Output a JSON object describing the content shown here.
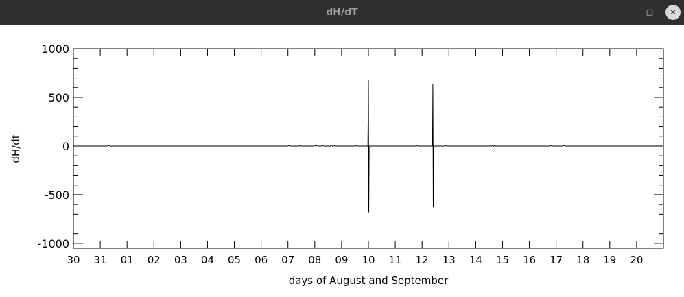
{
  "window": {
    "title": "dH/dT",
    "minimize_icon": "minimize-icon",
    "maximize_icon": "maximize-icon",
    "close_icon": "close-icon"
  },
  "chart_data": {
    "type": "line",
    "title": "",
    "xlabel": "days of August and September",
    "ylabel": "dH/dt",
    "xlim": [
      "2024-08-30",
      "2024-09-21"
    ],
    "ylim": [
      -1050,
      1000
    ],
    "x_ticks": [
      {
        "date": "2024-08-30",
        "label": "30"
      },
      {
        "date": "2024-08-31",
        "label": "31"
      },
      {
        "date": "2024-09-01",
        "label": "01"
      },
      {
        "date": "2024-09-02",
        "label": "02"
      },
      {
        "date": "2024-09-03",
        "label": "03"
      },
      {
        "date": "2024-09-04",
        "label": "04"
      },
      {
        "date": "2024-09-05",
        "label": "05"
      },
      {
        "date": "2024-09-06",
        "label": "06"
      },
      {
        "date": "2024-09-07",
        "label": "07"
      },
      {
        "date": "2024-09-08",
        "label": "08"
      },
      {
        "date": "2024-09-09",
        "label": "09"
      },
      {
        "date": "2024-09-10",
        "label": "10"
      },
      {
        "date": "2024-09-11",
        "label": "11"
      },
      {
        "date": "2024-09-12",
        "label": "12"
      },
      {
        "date": "2024-09-13",
        "label": "13"
      },
      {
        "date": "2024-09-14",
        "label": "14"
      },
      {
        "date": "2024-09-15",
        "label": "15"
      },
      {
        "date": "2024-09-16",
        "label": "16"
      },
      {
        "date": "2024-09-17",
        "label": "17"
      },
      {
        "date": "2024-09-18",
        "label": "18"
      },
      {
        "date": "2024-09-19",
        "label": "19"
      },
      {
        "date": "2024-09-20",
        "label": "20"
      }
    ],
    "y_ticks": [
      {
        "value": 1000,
        "label": "1000"
      },
      {
        "value": 500,
        "label": "500"
      },
      {
        "value": 0,
        "label": "0"
      },
      {
        "value": -500,
        "label": "-500"
      },
      {
        "value": -1000,
        "label": "-1000"
      }
    ],
    "series": [
      {
        "points": [
          {
            "x": "2024-08-30T00:00",
            "y": 0
          },
          {
            "x": "2024-08-31T07:00",
            "y": 0
          },
          {
            "x": "2024-08-31T08:00",
            "y": 8
          },
          {
            "x": "2024-08-31T09:00",
            "y": -4
          },
          {
            "x": "2024-08-31T10:00",
            "y": 0
          },
          {
            "x": "2024-09-01T00:00",
            "y": 0
          },
          {
            "x": "2024-09-07T00:00",
            "y": 0
          },
          {
            "x": "2024-09-07T01:00",
            "y": 5
          },
          {
            "x": "2024-09-07T02:00",
            "y": 0
          },
          {
            "x": "2024-09-07T10:00",
            "y": 0
          },
          {
            "x": "2024-09-07T11:00",
            "y": 4
          },
          {
            "x": "2024-09-07T12:00",
            "y": 0
          },
          {
            "x": "2024-09-07T23:00",
            "y": 0
          },
          {
            "x": "2024-09-08T00:00",
            "y": 8
          },
          {
            "x": "2024-09-08T01:00",
            "y": -4
          },
          {
            "x": "2024-09-08T02:00",
            "y": 10
          },
          {
            "x": "2024-09-08T03:00",
            "y": 0
          },
          {
            "x": "2024-09-08T06:00",
            "y": 0
          },
          {
            "x": "2024-09-08T07:00",
            "y": 6
          },
          {
            "x": "2024-09-08T08:00",
            "y": 0
          },
          {
            "x": "2024-09-08T14:00",
            "y": 0
          },
          {
            "x": "2024-09-08T15:00",
            "y": 9
          },
          {
            "x": "2024-09-08T16:00",
            "y": -5
          },
          {
            "x": "2024-09-08T17:00",
            "y": 8
          },
          {
            "x": "2024-09-08T18:00",
            "y": 0
          },
          {
            "x": "2024-09-09T12:00",
            "y": 0
          },
          {
            "x": "2024-09-09T13:00",
            "y": 3
          },
          {
            "x": "2024-09-09T14:00",
            "y": 0
          },
          {
            "x": "2024-09-09T23:30",
            "y": 0
          },
          {
            "x": "2024-09-10T00:00",
            "y": 680
          },
          {
            "x": "2024-09-10T00:20",
            "y": -680
          },
          {
            "x": "2024-09-10T00:40",
            "y": 0
          },
          {
            "x": "2024-09-11T18:00",
            "y": 0
          },
          {
            "x": "2024-09-11T19:00",
            "y": 4
          },
          {
            "x": "2024-09-11T20:00",
            "y": 0
          },
          {
            "x": "2024-09-12T09:20",
            "y": 0
          },
          {
            "x": "2024-09-12T09:40",
            "y": 640
          },
          {
            "x": "2024-09-12T10:00",
            "y": -630
          },
          {
            "x": "2024-09-12T10:20",
            "y": 0
          },
          {
            "x": "2024-09-12T20:00",
            "y": 0
          },
          {
            "x": "2024-09-12T21:00",
            "y": 5
          },
          {
            "x": "2024-09-12T22:00",
            "y": 0
          },
          {
            "x": "2024-09-14T14:00",
            "y": 0
          },
          {
            "x": "2024-09-14T15:00",
            "y": 5
          },
          {
            "x": "2024-09-14T16:00",
            "y": -3
          },
          {
            "x": "2024-09-14T17:00",
            "y": 4
          },
          {
            "x": "2024-09-14T18:00",
            "y": 0
          },
          {
            "x": "2024-09-16T18:00",
            "y": 0
          },
          {
            "x": "2024-09-16T19:00",
            "y": 4
          },
          {
            "x": "2024-09-16T20:00",
            "y": 0
          },
          {
            "x": "2024-09-17T06:00",
            "y": 0
          },
          {
            "x": "2024-09-17T07:00",
            "y": 6
          },
          {
            "x": "2024-09-17T08:00",
            "y": 0
          },
          {
            "x": "2024-09-21T00:00",
            "y": 0
          }
        ]
      }
    ],
    "grid": false,
    "minor_y_step": 100
  }
}
